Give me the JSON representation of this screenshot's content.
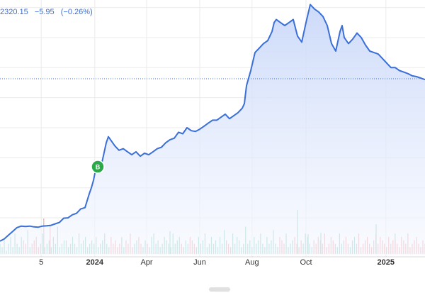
{
  "header": {
    "last": "2320.15",
    "change": "−5.95",
    "change_pct": "(−0.26%)"
  },
  "marker": {
    "label": "B",
    "color": "#2aa84a"
  },
  "colors": {
    "line": "#3a6fd8",
    "area_top": "#c7d6f8",
    "area_bottom": "#f5f8ff",
    "grid": "#ebebeb",
    "ref_line": "#3a6fd8",
    "vol_up": "#8fd0c4",
    "vol_down": "#f0a8a8"
  },
  "chart_data": {
    "type": "area",
    "title": "",
    "xlabel": "",
    "ylabel": "",
    "x_ticks": [
      {
        "label": "5",
        "bold": false
      },
      {
        "label": "2024",
        "bold": true
      },
      {
        "label": "Apr",
        "bold": false
      },
      {
        "label": "Jun",
        "bold": false
      },
      {
        "label": "Aug",
        "bold": false
      },
      {
        "label": "Oct",
        "bold": false
      },
      {
        "label": "2025",
        "bold": true
      }
    ],
    "x_tick_pos": [
      0.097,
      0.223,
      0.345,
      0.47,
      0.593,
      0.72,
      0.908
    ],
    "ylim": [
      1150,
      2850
    ],
    "ref_level": 2326,
    "grid": true,
    "series": [
      {
        "x": [
          0,
          0.01,
          0.02,
          0.03,
          0.04,
          0.05,
          0.06,
          0.07,
          0.08,
          0.09,
          0.1,
          0.11,
          0.12,
          0.13,
          0.14,
          0.15,
          0.16,
          0.17,
          0.18,
          0.19,
          0.2,
          0.21,
          0.215,
          0.22,
          0.225,
          0.23,
          0.24,
          0.25,
          0.255,
          0.26,
          0.27,
          0.28,
          0.29,
          0.3,
          0.31,
          0.32,
          0.33,
          0.34,
          0.35,
          0.36,
          0.37,
          0.38,
          0.39,
          0.4,
          0.41,
          0.42,
          0.43,
          0.44,
          0.45,
          0.46,
          0.47,
          0.48,
          0.49,
          0.5,
          0.51,
          0.52,
          0.53,
          0.54,
          0.55,
          0.56,
          0.57,
          0.575,
          0.58,
          0.59,
          0.6,
          0.61,
          0.62,
          0.63,
          0.64,
          0.645,
          0.65,
          0.66,
          0.67,
          0.68,
          0.69,
          0.7,
          0.71,
          0.72,
          0.73,
          0.74,
          0.75,
          0.76,
          0.77,
          0.78,
          0.79,
          0.8,
          0.805,
          0.81,
          0.82,
          0.83,
          0.84,
          0.85,
          0.86,
          0.87,
          0.88,
          0.89,
          0.9,
          0.91,
          0.92,
          0.93,
          0.94,
          0.95,
          0.96,
          0.97,
          0.98,
          0.99,
          1.0
        ],
        "values": [
          1245,
          1260,
          1285,
          1310,
          1335,
          1345,
          1342,
          1345,
          1340,
          1338,
          1345,
          1347,
          1350,
          1360,
          1370,
          1398,
          1400,
          1420,
          1430,
          1460,
          1468,
          1560,
          1600,
          1650,
          1720,
          1740,
          1770,
          1900,
          1940,
          1920,
          1880,
          1850,
          1860,
          1840,
          1820,
          1840,
          1810,
          1830,
          1820,
          1840,
          1860,
          1870,
          1900,
          1920,
          1930,
          1970,
          1960,
          2000,
          1980,
          1975,
          1990,
          2010,
          2030,
          2050,
          2050,
          2070,
          2090,
          2060,
          2080,
          2100,
          2130,
          2160,
          2280,
          2380,
          2500,
          2530,
          2560,
          2580,
          2640,
          2700,
          2720,
          2700,
          2680,
          2700,
          2720,
          2610,
          2570,
          2700,
          2820,
          2790,
          2770,
          2740,
          2680,
          2560,
          2510,
          2640,
          2680,
          2600,
          2560,
          2590,
          2630,
          2600,
          2550,
          2510,
          2500,
          2490,
          2460,
          2430,
          2400,
          2400,
          2380,
          2370,
          2360,
          2345,
          2340,
          2330,
          2320
        ]
      }
    ],
    "volume": [
      3,
      2,
      4,
      1,
      3,
      5,
      2,
      6,
      3,
      2,
      5,
      4,
      3,
      7,
      2,
      3,
      4,
      5,
      2,
      3,
      6,
      2,
      3,
      4,
      2,
      5,
      3,
      8,
      2,
      3,
      4,
      4,
      2,
      3,
      5,
      3,
      2,
      6,
      3,
      4,
      5,
      2,
      3,
      4,
      3,
      5,
      2,
      3,
      4,
      6,
      3,
      2,
      5,
      3,
      4,
      2,
      3,
      5,
      2,
      4,
      3,
      6,
      2,
      3,
      4,
      5,
      3,
      2,
      4,
      3,
      2,
      5,
      6,
      3,
      4,
      2,
      3,
      5,
      4,
      3,
      2,
      6,
      3,
      4,
      5,
      3,
      2,
      4,
      3,
      5,
      4,
      3,
      2,
      5,
      3,
      4,
      6,
      2,
      3,
      5,
      3,
      4,
      2,
      5,
      3,
      7,
      4,
      3,
      2,
      6,
      3,
      5,
      4,
      2,
      3,
      8,
      3,
      4,
      2,
      5,
      3,
      4,
      6,
      3,
      2,
      5,
      3,
      4,
      7,
      3,
      2,
      5,
      4,
      3,
      6,
      2,
      3,
      4,
      5,
      3,
      2,
      4,
      3,
      6,
      5,
      3,
      2,
      4,
      3,
      5,
      4,
      3,
      6,
      2,
      3,
      5,
      4,
      3,
      2,
      6,
      3,
      4,
      5,
      3,
      2,
      4,
      5,
      3,
      6,
      2,
      3,
      4,
      5,
      3,
      2,
      4,
      6,
      3,
      5,
      4,
      3,
      2,
      5,
      3,
      4,
      6,
      3,
      2,
      5,
      4,
      3,
      6,
      2,
      3,
      4,
      5,
      3,
      2,
      4,
      3
    ]
  }
}
